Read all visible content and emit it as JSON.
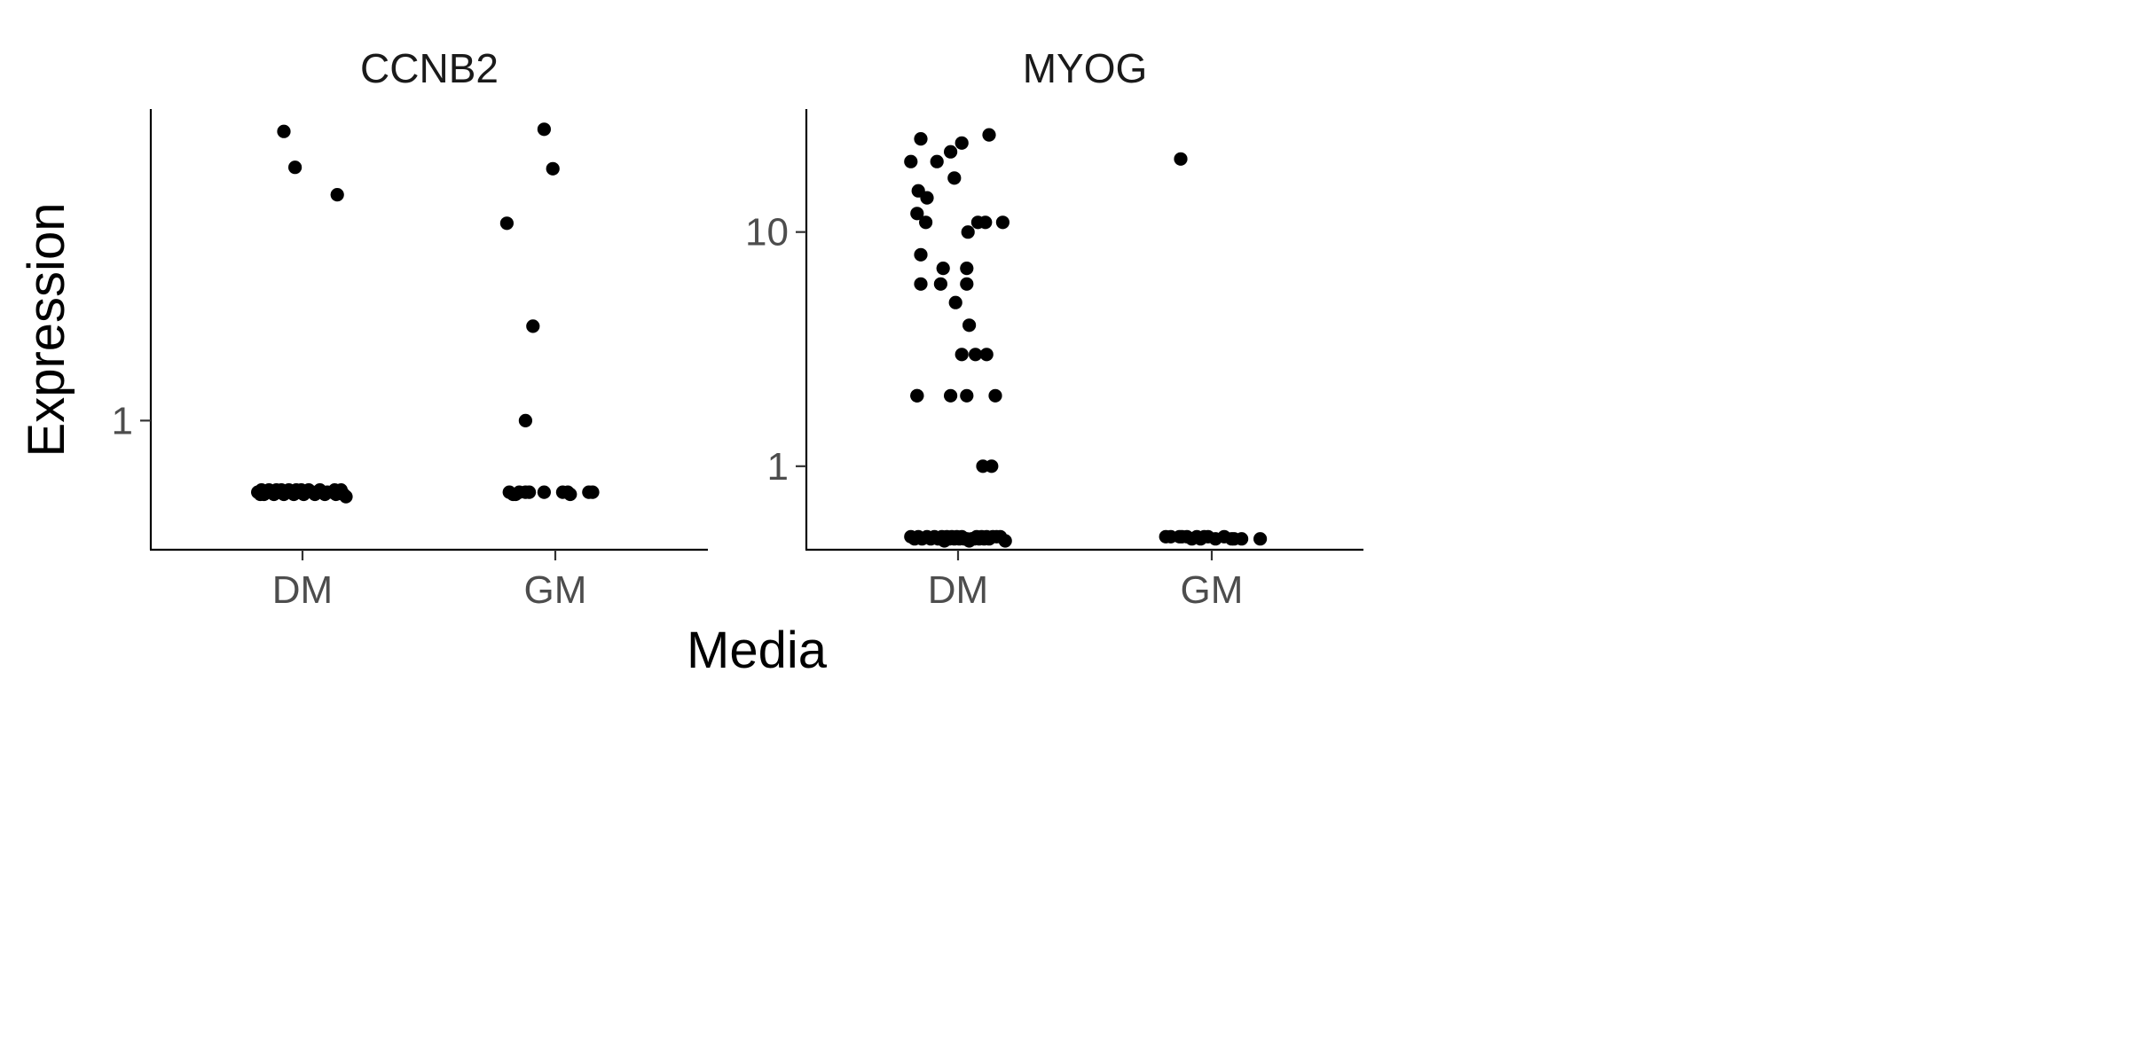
{
  "chart_data": {
    "type": "scatter",
    "xlabel": "Media",
    "ylabel": "Expression",
    "y_scale": "log10",
    "grid": false,
    "legend": "none",
    "point_color": "#000000",
    "axis_color": "#000000",
    "tick_label_color": "#4d4d4d",
    "categories": [
      "DM",
      "GM"
    ],
    "panels": [
      {
        "title": "CCNB2",
        "y_ticks": [
          {
            "value": 1,
            "label": "1"
          }
        ],
        "ylim": [
          0.34,
          13.5
        ],
        "series": [
          {
            "category": "DM",
            "points": [
              {
                "x": -0.36,
                "y": 0.55
              },
              {
                "x": -0.34,
                "y": 0.54
              },
              {
                "x": -0.33,
                "y": 0.56
              },
              {
                "x": -0.31,
                "y": 0.54
              },
              {
                "x": -0.29,
                "y": 0.55
              },
              {
                "x": -0.27,
                "y": 0.56
              },
              {
                "x": -0.25,
                "y": 0.55
              },
              {
                "x": -0.23,
                "y": 0.54
              },
              {
                "x": -0.21,
                "y": 0.56
              },
              {
                "x": -0.19,
                "y": 0.55
              },
              {
                "x": -0.17,
                "y": 0.56
              },
              {
                "x": -0.15,
                "y": 0.54
              },
              {
                "x": -0.13,
                "y": 0.55
              },
              {
                "x": -0.11,
                "y": 0.56
              },
              {
                "x": -0.09,
                "y": 0.55
              },
              {
                "x": -0.07,
                "y": 0.54
              },
              {
                "x": -0.05,
                "y": 0.56
              },
              {
                "x": -0.03,
                "y": 0.55
              },
              {
                "x": -0.01,
                "y": 0.56
              },
              {
                "x": 0.01,
                "y": 0.54
              },
              {
                "x": 0.03,
                "y": 0.55
              },
              {
                "x": 0.05,
                "y": 0.56
              },
              {
                "x": 0.08,
                "y": 0.55
              },
              {
                "x": 0.1,
                "y": 0.54
              },
              {
                "x": 0.12,
                "y": 0.55
              },
              {
                "x": 0.14,
                "y": 0.56
              },
              {
                "x": 0.16,
                "y": 0.55
              },
              {
                "x": 0.18,
                "y": 0.54
              },
              {
                "x": 0.2,
                "y": 0.55
              },
              {
                "x": 0.24,
                "y": 0.55
              },
              {
                "x": 0.26,
                "y": 0.56
              },
              {
                "x": 0.27,
                "y": 0.54
              },
              {
                "x": 0.3,
                "y": 0.55
              },
              {
                "x": 0.31,
                "y": 0.56
              },
              {
                "x": 0.33,
                "y": 0.54
              },
              {
                "x": 0.35,
                "y": 0.53
              },
              {
                "x": -0.15,
                "y": 11.2
              },
              {
                "x": -0.06,
                "y": 8.3
              },
              {
                "x": 0.28,
                "y": 6.6
              }
            ]
          },
          {
            "category": "GM",
            "points": [
              {
                "x": -0.37,
                "y": 0.55
              },
              {
                "x": -0.34,
                "y": 0.54
              },
              {
                "x": -0.32,
                "y": 0.54
              },
              {
                "x": -0.29,
                "y": 0.55
              },
              {
                "x": -0.24,
                "y": 0.55
              },
              {
                "x": -0.21,
                "y": 0.55
              },
              {
                "x": -0.09,
                "y": 0.55
              },
              {
                "x": 0.06,
                "y": 0.55
              },
              {
                "x": 0.1,
                "y": 0.55
              },
              {
                "x": 0.12,
                "y": 0.54
              },
              {
                "x": 0.27,
                "y": 0.55
              },
              {
                "x": 0.3,
                "y": 0.55
              },
              {
                "x": -0.24,
                "y": 1.0
              },
              {
                "x": -0.18,
                "y": 2.2
              },
              {
                "x": -0.39,
                "y": 5.2
              },
              {
                "x": -0.09,
                "y": 11.4
              },
              {
                "x": -0.02,
                "y": 8.2
              }
            ]
          }
        ]
      },
      {
        "title": "MYOG",
        "y_ticks": [
          {
            "value": 1,
            "label": "1"
          },
          {
            "value": 10,
            "label": "10"
          }
        ],
        "ylim": [
          0.44,
          33.5
        ],
        "series": [
          {
            "category": "DM",
            "points": [
              {
                "x": -0.38,
                "y": 0.5
              },
              {
                "x": -0.35,
                "y": 0.49
              },
              {
                "x": -0.32,
                "y": 0.5
              },
              {
                "x": -0.29,
                "y": 0.49
              },
              {
                "x": -0.25,
                "y": 0.5
              },
              {
                "x": -0.22,
                "y": 0.49
              },
              {
                "x": -0.19,
                "y": 0.5
              },
              {
                "x": -0.16,
                "y": 0.49
              },
              {
                "x": -0.13,
                "y": 0.5
              },
              {
                "x": -0.11,
                "y": 0.48
              },
              {
                "x": -0.09,
                "y": 0.5
              },
              {
                "x": -0.07,
                "y": 0.49
              },
              {
                "x": -0.05,
                "y": 0.5
              },
              {
                "x": -0.03,
                "y": 0.49
              },
              {
                "x": -0.01,
                "y": 0.5
              },
              {
                "x": 0.01,
                "y": 0.49
              },
              {
                "x": 0.03,
                "y": 0.5
              },
              {
                "x": 0.05,
                "y": 0.49
              },
              {
                "x": 0.07,
                "y": 0.49
              },
              {
                "x": 0.09,
                "y": 0.48
              },
              {
                "x": 0.11,
                "y": 0.49
              },
              {
                "x": 0.13,
                "y": 0.49
              },
              {
                "x": 0.15,
                "y": 0.5
              },
              {
                "x": 0.17,
                "y": 0.49
              },
              {
                "x": 0.19,
                "y": 0.5
              },
              {
                "x": 0.21,
                "y": 0.49
              },
              {
                "x": 0.23,
                "y": 0.5
              },
              {
                "x": 0.25,
                "y": 0.49
              },
              {
                "x": 0.28,
                "y": 0.5
              },
              {
                "x": 0.31,
                "y": 0.5
              },
              {
                "x": 0.34,
                "y": 0.5
              },
              {
                "x": 0.38,
                "y": 0.48
              },
              {
                "x": -0.38,
                "y": 20.0
              },
              {
                "x": -0.3,
                "y": 25.0
              },
              {
                "x": -0.32,
                "y": 15.0
              },
              {
                "x": -0.33,
                "y": 12.0
              },
              {
                "x": -0.25,
                "y": 14.0
              },
              {
                "x": -0.26,
                "y": 11.0
              },
              {
                "x": -0.3,
                "y": 8.0
              },
              {
                "x": -0.3,
                "y": 6.0
              },
              {
                "x": -0.33,
                "y": 2.0
              },
              {
                "x": -0.33,
                "y": 2.0
              },
              {
                "x": -0.17,
                "y": 20.0
              },
              {
                "x": -0.12,
                "y": 7.0
              },
              {
                "x": -0.14,
                "y": 6.0
              },
              {
                "x": -0.06,
                "y": 22.0
              },
              {
                "x": -0.02,
                "y": 5.0
              },
              {
                "x": -0.03,
                "y": 17.0
              },
              {
                "x": -0.06,
                "y": 2.0
              },
              {
                "x": 0.03,
                "y": 24.0
              },
              {
                "x": 0.03,
                "y": 3.0
              },
              {
                "x": 0.08,
                "y": 10.0
              },
              {
                "x": 0.07,
                "y": 7.0
              },
              {
                "x": 0.07,
                "y": 6.0
              },
              {
                "x": 0.09,
                "y": 4.0
              },
              {
                "x": 0.07,
                "y": 2.0
              },
              {
                "x": 0.14,
                "y": 3.0
              },
              {
                "x": 0.16,
                "y": 11.0
              },
              {
                "x": 0.2,
                "y": 1.0
              },
              {
                "x": 0.22,
                "y": 11.0
              },
              {
                "x": 0.23,
                "y": 3.0
              },
              {
                "x": 0.25,
                "y": 26.0
              },
              {
                "x": 0.27,
                "y": 1.0
              },
              {
                "x": 0.3,
                "y": 2.0
              },
              {
                "x": 0.36,
                "y": 11.0
              }
            ]
          },
          {
            "category": "GM",
            "points": [
              {
                "x": -0.37,
                "y": 0.5
              },
              {
                "x": -0.33,
                "y": 0.5
              },
              {
                "x": -0.26,
                "y": 0.5
              },
              {
                "x": -0.24,
                "y": 0.5
              },
              {
                "x": -0.2,
                "y": 0.5
              },
              {
                "x": -0.16,
                "y": 0.49
              },
              {
                "x": -0.12,
                "y": 0.5
              },
              {
                "x": -0.09,
                "y": 0.49
              },
              {
                "x": -0.06,
                "y": 0.5
              },
              {
                "x": -0.03,
                "y": 0.5
              },
              {
                "x": 0.03,
                "y": 0.49
              },
              {
                "x": 0.1,
                "y": 0.5
              },
              {
                "x": 0.16,
                "y": 0.49
              },
              {
                "x": 0.18,
                "y": 0.49
              },
              {
                "x": 0.24,
                "y": 0.49
              },
              {
                "x": 0.39,
                "y": 0.49
              },
              {
                "x": -0.25,
                "y": 20.5
              }
            ]
          }
        ]
      }
    ]
  }
}
